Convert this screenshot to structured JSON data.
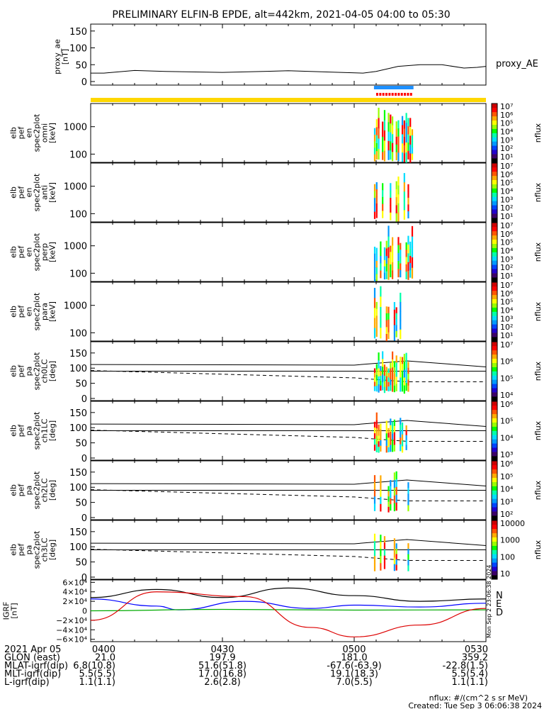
{
  "title": "PRELIMINARY ELFIN-B EPDE, alt=442km, 2021-04-05 04:00 to 05:30",
  "colors": {
    "yellow_bar": "#ffd700",
    "blue_bar": "#1e90ff",
    "red_bar": "#ff0000",
    "trace_black": "#000000",
    "trace_blue": "#0000ff",
    "trace_green": "#00aa00",
    "trace_red": "#dd0000"
  },
  "chart_data": [
    {
      "type": "line",
      "id": "proxy_ae",
      "ylabel": [
        "proxy_ae",
        "[nT]"
      ],
      "series_label": "proxy_AE",
      "yticks": [
        "150",
        "100",
        "50",
        "0"
      ],
      "ylim": [
        0,
        160
      ],
      "x_minutes": [
        0,
        3,
        10,
        17,
        30,
        45,
        55,
        62,
        65,
        70,
        75,
        80,
        85,
        88,
        90
      ],
      "values": [
        25,
        25,
        33,
        30,
        27,
        32,
        28,
        25,
        30,
        45,
        50,
        50,
        40,
        42,
        45
      ]
    },
    {
      "type": "heatmap",
      "id": "omni",
      "ylabel": [
        "elb",
        "pef",
        "en",
        "spec2plot",
        "omni",
        "[keV]"
      ],
      "yticks": [
        "1000",
        "100"
      ],
      "ylim": [
        50,
        7000
      ],
      "yscale": "log",
      "colorbar": {
        "label": "nflux",
        "ticks": [
          "10⁷",
          "10⁶",
          "10⁵",
          "10⁴",
          "10³",
          "10²",
          "10¹"
        ]
      }
    },
    {
      "type": "heatmap",
      "id": "anti",
      "ylabel": [
        "elb",
        "pef",
        "en",
        "spec2plot",
        "anti",
        "[keV]"
      ],
      "yticks": [
        "1000",
        "100"
      ],
      "ylim": [
        50,
        7000
      ],
      "yscale": "log",
      "colorbar": {
        "label": "nflux",
        "ticks": [
          "10⁷",
          "10⁶",
          "10⁵",
          "10⁴",
          "10³",
          "10²",
          "10¹"
        ]
      }
    },
    {
      "type": "heatmap",
      "id": "perp",
      "ylabel": [
        "elb",
        "pef",
        "en",
        "spec2plot",
        "perp",
        "[keV]"
      ],
      "yticks": [
        "1000",
        "100"
      ],
      "ylim": [
        50,
        7000
      ],
      "yscale": "log",
      "colorbar": {
        "label": "nflux",
        "ticks": [
          "10⁷",
          "10⁶",
          "10⁵",
          "10⁴",
          "10³",
          "10²",
          "10¹"
        ]
      }
    },
    {
      "type": "heatmap",
      "id": "para",
      "ylabel": [
        "elb",
        "pef",
        "en",
        "spec2plot",
        "para",
        "[keV]"
      ],
      "yticks": [
        "1000",
        "100"
      ],
      "ylim": [
        50,
        7000
      ],
      "yscale": "log",
      "colorbar": {
        "label": "nflux",
        "ticks": [
          "10⁷",
          "10⁶",
          "10⁵",
          "10⁴",
          "10³",
          "10²",
          "10¹"
        ]
      }
    },
    {
      "type": "heatmap",
      "id": "ch0LC",
      "ylabel": [
        "elb",
        "pef",
        "pa",
        "spec2plot",
        "ch0LC",
        "[deg]"
      ],
      "yticks": [
        "150",
        "100",
        "50",
        "0"
      ],
      "ylim": [
        0,
        180
      ],
      "colorbar": {
        "label": "nflux",
        "ticks": [
          "10⁷",
          "10⁶",
          "10⁵",
          "10⁴"
        ]
      }
    },
    {
      "type": "heatmap",
      "id": "ch1LC",
      "ylabel": [
        "elb",
        "pef",
        "pa",
        "spec2plot",
        "ch1LC",
        "[deg]"
      ],
      "yticks": [
        "150",
        "100",
        "50",
        "0"
      ],
      "ylim": [
        0,
        180
      ],
      "colorbar": {
        "label": "nflux",
        "ticks": [
          "10⁶",
          "10⁵",
          "10⁴",
          "10³"
        ]
      }
    },
    {
      "type": "heatmap",
      "id": "ch2LC",
      "ylabel": [
        "elb",
        "pef",
        "pa",
        "spec2plot",
        "ch2LC",
        "[deg]"
      ],
      "yticks": [
        "150",
        "100",
        "50",
        "0"
      ],
      "ylim": [
        0,
        180
      ],
      "colorbar": {
        "label": "nflux",
        "ticks": [
          "10⁶",
          "10⁵",
          "10⁴",
          "10³",
          "10²"
        ]
      }
    },
    {
      "type": "heatmap",
      "id": "ch3LC",
      "ylabel": [
        "elb",
        "pef",
        "pa",
        "spec2plot",
        "ch3LC",
        "[deg]"
      ],
      "yticks": [
        "150",
        "100",
        "50",
        "0"
      ],
      "ylim": [
        0,
        180
      ],
      "colorbar": {
        "label": "nflux",
        "ticks": [
          "10000",
          "1000",
          "100",
          "10"
        ]
      }
    },
    {
      "type": "line",
      "id": "igrf",
      "ylabel": [
        "IGRF",
        "[nT]"
      ],
      "yticks": [
        "6×10⁴",
        "4×10⁴",
        "2×10⁴",
        "0",
        "−2×10⁴",
        "−4×10⁴",
        "−6×10⁴"
      ],
      "ylim": [
        -65000,
        65000
      ],
      "legend": [
        "N",
        "E",
        "D"
      ],
      "series": [
        {
          "name": "N",
          "color": "#000000",
          "x_minutes": [
            0,
            15,
            30,
            45,
            60,
            75,
            90
          ],
          "values": [
            28000,
            45000,
            28000,
            48000,
            32000,
            20000,
            25000
          ]
        },
        {
          "name": "E",
          "color": "#0000ff",
          "x_minutes": [
            0,
            15,
            20,
            35,
            50,
            60,
            75,
            90
          ],
          "values": [
            25000,
            10000,
            2000,
            20000,
            5000,
            12000,
            8000,
            16000
          ]
        },
        {
          "name": "D",
          "color": "#00aa00",
          "x_minutes": [
            0,
            30,
            60,
            90
          ],
          "values": [
            0,
            3000,
            1500,
            2000
          ]
        },
        {
          "name": "red",
          "color": "#dd0000",
          "x_minutes": [
            0,
            15,
            35,
            50,
            60,
            75,
            90
          ],
          "values": [
            -20000,
            40000,
            30000,
            -35000,
            -55000,
            -30000,
            5000
          ]
        }
      ]
    }
  ],
  "time_axis": {
    "row_labels": [
      "2021 Apr 05",
      "GLON (east)",
      "MLAT-igrf(dip)",
      "MLT-igrf(dip)",
      "L-igrf(dip)"
    ],
    "columns": [
      {
        "time": "0400",
        "glon": "21.0",
        "mlat": "6.8(10.8)",
        "mlt": "5.5(5.5)",
        "l": "1.1(1.1)"
      },
      {
        "time": "0430",
        "glon": "197.9",
        "mlat": "51.6(51.8)",
        "mlt": "17.0(16.8)",
        "l": "2.6(2.8)"
      },
      {
        "time": "0500",
        "glon": "181.0",
        "mlat": "-67.6(-63.9)",
        "mlt": "19.1(18.3)",
        "l": "7.0(5.5)"
      },
      {
        "time": "0530",
        "glon": "359.2",
        "mlat": "-22.8(1.5)",
        "mlt": "5.5(5.4)",
        "l": "1.1(1.1)"
      }
    ]
  },
  "footer": {
    "units": "nflux: #/(cm^2 s sr MeV)",
    "created": "Created: Tue Sep  3 06:06:38 2024",
    "side_stamp": "Mon Sep  2 23:06:38 2024"
  }
}
